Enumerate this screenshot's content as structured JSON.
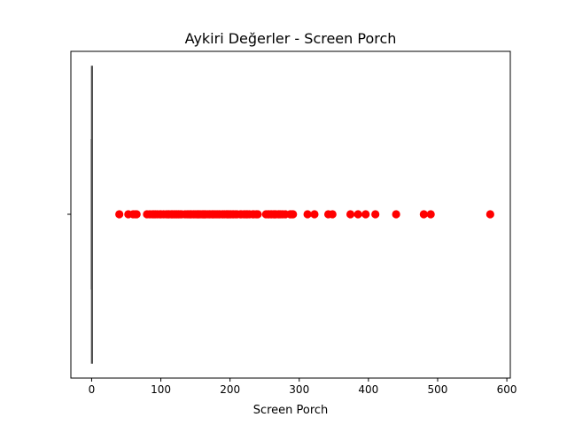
{
  "chart_data": {
    "type": "scatter",
    "title": "Aykiri Değerler - Screen Porch",
    "xlabel": "Screen Porch",
    "ylabel": "",
    "xlim": [
      -30,
      605
    ],
    "x_ticks": [
      0,
      100,
      200,
      300,
      400,
      500,
      600
    ],
    "grid": false,
    "legend": "none",
    "boxplot": {
      "q1": 0,
      "median": 0,
      "q3": 0,
      "whisker_low": 0,
      "whisker_high": 0,
      "color": "#4d4d4d"
    },
    "outlier_color": "#ff0000",
    "series": [
      {
        "values": [
          40,
          53,
          60,
          63,
          65,
          80,
          84,
          88,
          90,
          92,
          95,
          99,
          100,
          104,
          108,
          110,
          111,
          112,
          115,
          116,
          117,
          119,
          120,
          122,
          123,
          125,
          126,
          128,
          130,
          135,
          138,
          140,
          142,
          143,
          144,
          147,
          148,
          150,
          152,
          153,
          154,
          155,
          156,
          158,
          160,
          161,
          162,
          163,
          164,
          165,
          168,
          170,
          171,
          174,
          175,
          176,
          178,
          180,
          182,
          184,
          185,
          189,
          190,
          192,
          195,
          196,
          197,
          198,
          200,
          201,
          204,
          205,
          208,
          210,
          215,
          216,
          220,
          222,
          224,
          225,
          228,
          233,
          234,
          238,
          240,
          252,
          255,
          256,
          259,
          260,
          263,
          264,
          265,
          266,
          270,
          271,
          273,
          276,
          280,
          287,
          288,
          290,
          291,
          312,
          322,
          342,
          348,
          374,
          385,
          396,
          410,
          440,
          480,
          490,
          576
        ]
      }
    ]
  }
}
